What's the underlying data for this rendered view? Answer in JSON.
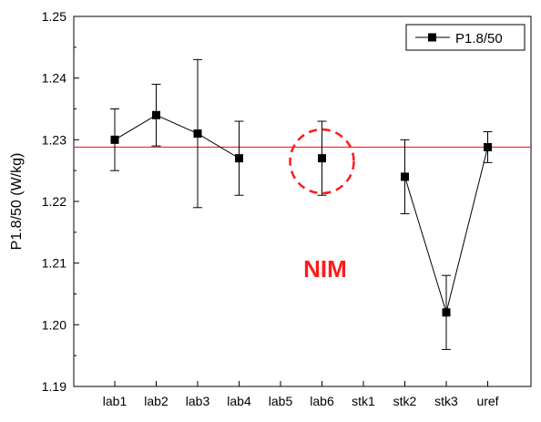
{
  "chart_data": {
    "type": "scatter",
    "ylabel": "P1.8/50 (W/kg)",
    "xlabel": "",
    "ylim": [
      1.19,
      1.25
    ],
    "yticks": [
      "1.19",
      "1.20",
      "1.21",
      "1.22",
      "1.23",
      "1.24",
      "1.25"
    ],
    "categories": [
      "lab1",
      "lab2",
      "lab3",
      "lab4",
      "lab5",
      "lab6",
      "stk1",
      "stk2",
      "stk3",
      "uref"
    ],
    "series": [
      {
        "name": "P1.8/50",
        "color": "#000000",
        "marker": "square",
        "points": [
          {
            "x": "lab1",
            "y": 1.23,
            "err_low": 1.225,
            "err_high": 1.235
          },
          {
            "x": "lab2",
            "y": 1.234,
            "err_low": 1.229,
            "err_high": 1.239
          },
          {
            "x": "lab3",
            "y": 1.231,
            "err_low": 1.219,
            "err_high": 1.243
          },
          {
            "x": "lab4",
            "y": 1.227,
            "err_low": 1.221,
            "err_high": 1.233
          },
          {
            "x": "lab6",
            "y": 1.227,
            "err_low": 1.221,
            "err_high": 1.233
          },
          {
            "x": "stk2",
            "y": 1.224,
            "err_low": 1.218,
            "err_high": 1.23
          },
          {
            "x": "stk3",
            "y": 1.202,
            "err_low": 1.196,
            "err_high": 1.208
          },
          {
            "x": "uref",
            "y": 1.2288,
            "err_low": 1.2263,
            "err_high": 1.2313
          }
        ],
        "line_segments": [
          [
            "lab1",
            "lab2",
            "lab3",
            "lab4"
          ],
          [
            "stk2",
            "stk3",
            "uref"
          ]
        ]
      }
    ],
    "reference_line": {
      "y": 1.2288,
      "color": "#ff2020"
    },
    "highlight_circle": {
      "x": "lab6",
      "color": "#ff1a1a",
      "style": "dashed"
    },
    "annotation": {
      "text": "NIM",
      "color": "#ff1a1a"
    },
    "legend": {
      "position": "top-right",
      "entries": [
        "P1.8/50"
      ]
    },
    "grid": false
  }
}
